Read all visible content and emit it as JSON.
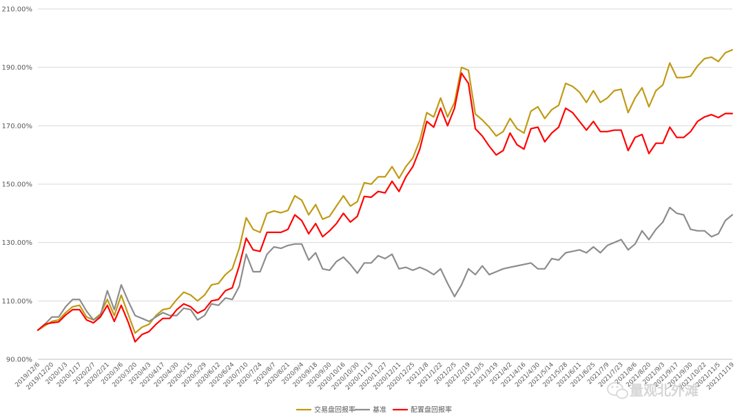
{
  "chart_data": {
    "type": "line",
    "ylim": [
      90,
      210
    ],
    "y_ticks": [
      "90.00%",
      "110.00%",
      "130.00%",
      "150.00%",
      "170.00%",
      "190.00%",
      "210.00%"
    ],
    "x_tick_labels": [
      "2019/12/6",
      "2019/12/20",
      "2020/1/3",
      "2020/1/17",
      "2020/2/7",
      "2020/2/21",
      "2020/3/6",
      "2020/3/20",
      "2020/4/3",
      "2020/4/17",
      "2020/4/30",
      "2020/5/15",
      "2020/5/29",
      "2020/6/12",
      "2020/6/24",
      "2020/7/10",
      "2020/7/24",
      "2020/8/7",
      "2020/8/21",
      "2020/9/4",
      "2020/9/18",
      "2020/9/30",
      "2020/10/16",
      "2020/10/30",
      "2020/11/13",
      "2020/11/27",
      "2020/12/11",
      "2020/12/25",
      "2021/1/8",
      "2021/1/22",
      "2021/2/5",
      "2021/2/19",
      "2021/3/5",
      "2021/3/19",
      "2021/4/2",
      "2021/4/16",
      "2021/4/30",
      "2021/5/14",
      "2021/5/28",
      "2021/6/11",
      "2021/6/25",
      "2021/7/9",
      "2021/7/23",
      "2021/8/6",
      "2021/8/20",
      "2021/9/3",
      "2021/9/17",
      "2021/9/30",
      "2021/10/22",
      "2021/11/5",
      "2021/11/19"
    ],
    "grid": true,
    "legend_position": "bottom",
    "series": [
      {
        "name": "交易盘回报率",
        "color": "#c09a13",
        "values": [
          100,
          101.5,
          103,
          103.5,
          106,
          108,
          108.5,
          104.5,
          103.5,
          105.5,
          110.5,
          105,
          112,
          105.5,
          99,
          101,
          102,
          105,
          107,
          107.5,
          110.5,
          113,
          112,
          110,
          112,
          115.5,
          116,
          119,
          121,
          128,
          138.5,
          134.5,
          133.5,
          140,
          140.8,
          140.2,
          141,
          146,
          144.5,
          139.5,
          143,
          138,
          139,
          142.5,
          146,
          142.5,
          144,
          150.5,
          150,
          152.5,
          152.5,
          156,
          152,
          156,
          159,
          165,
          174.5,
          173,
          179.5,
          173,
          178,
          190,
          189,
          174,
          172,
          169.5,
          166.5,
          168,
          172.5,
          169,
          167.5,
          175,
          176.5,
          172.5,
          175.5,
          177,
          184.5,
          183.5,
          181.5,
          178,
          182,
          178,
          179.5,
          182,
          182.5,
          174.5,
          179.5,
          183,
          176.5,
          182,
          184,
          191.5,
          186.5,
          186.5,
          187,
          190.5,
          193,
          193.5,
          192,
          195,
          196
        ]
      },
      {
        "name": "基准",
        "color": "#8c8c8c",
        "values": [
          100,
          102,
          104.5,
          104.5,
          108,
          110.5,
          110.5,
          106.5,
          103.5,
          105,
          113.5,
          107,
          115.5,
          110,
          105,
          104,
          103,
          104.5,
          106,
          105,
          105,
          107.5,
          107,
          103.5,
          105,
          109,
          108.5,
          111,
          110.5,
          115,
          126,
          120,
          120,
          126,
          128.5,
          128,
          129,
          129.5,
          129.5,
          124,
          126.5,
          121,
          120.5,
          123.5,
          125,
          122.5,
          119.5,
          123,
          123,
          125.5,
          124.5,
          126,
          121,
          121.5,
          120.5,
          121.5,
          120.5,
          119,
          121,
          116,
          111.5,
          115.5,
          121,
          119,
          122,
          119,
          120,
          121,
          121.5,
          122,
          122.5,
          123,
          121,
          121,
          124.5,
          124,
          126.5,
          127,
          127.5,
          126.5,
          128.5,
          126.5,
          129,
          130,
          131,
          127.5,
          129.5,
          134,
          131,
          134.5,
          137,
          142,
          140,
          139.5,
          134.5,
          134,
          134,
          132,
          133,
          137.5,
          139.5
        ]
      },
      {
        "name": "配置盘回报率",
        "color": "#ff0000",
        "values": [
          100,
          102,
          102.5,
          102.8,
          105.2,
          107,
          107,
          103.5,
          102.5,
          104.5,
          108.5,
          103,
          108.5,
          102.8,
          96,
          98.5,
          99.5,
          102,
          104,
          104,
          107,
          109,
          108,
          105.8,
          107,
          110,
          110.5,
          113.5,
          114.5,
          122,
          131.5,
          127.5,
          127,
          133.5,
          133.5,
          133.5,
          134.5,
          139.5,
          137.5,
          133,
          136.5,
          132,
          134,
          136.5,
          140,
          137,
          139,
          145.8,
          145.5,
          147.5,
          147,
          151,
          147.5,
          152.5,
          156,
          162,
          171.5,
          169.5,
          176,
          170,
          176,
          188,
          184.5,
          169,
          166.5,
          163,
          160,
          161.5,
          167.5,
          163.5,
          162,
          169,
          169.5,
          164.5,
          167.5,
          169.5,
          176,
          174.5,
          171.5,
          168.5,
          171.5,
          168,
          168,
          168.5,
          168.5,
          161.5,
          166,
          167,
          160.5,
          164,
          164,
          169.5,
          166,
          166,
          168,
          171.5,
          173,
          173.8,
          172.8,
          174.2,
          174.2
        ]
      }
    ]
  },
  "watermark": {
    "text": "量观北外滩",
    "icon": "wechat-logo-icon"
  }
}
